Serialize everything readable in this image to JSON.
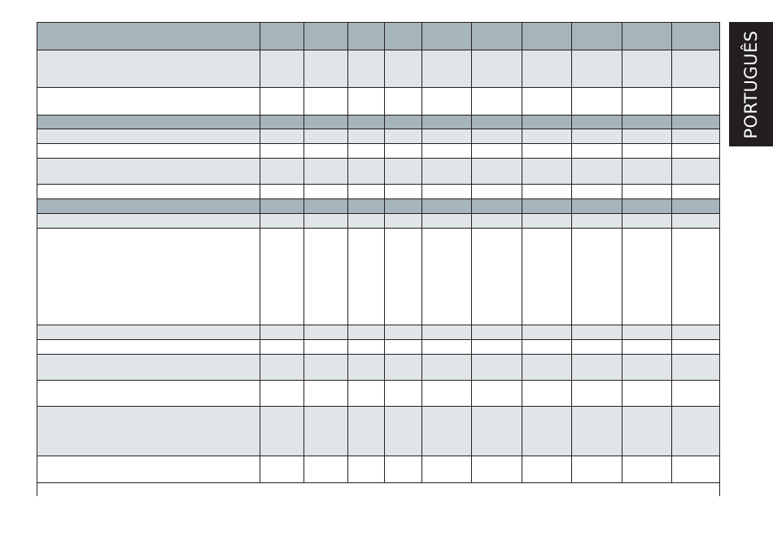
{
  "side_tab": {
    "label": "PORTUGUÊS",
    "background": "#231f20",
    "text_color": "#ffffff"
  },
  "table": {
    "header_color": "#a6b4bb",
    "shaded_row_color": "#e0e5e8",
    "cells_text": "empty"
  }
}
